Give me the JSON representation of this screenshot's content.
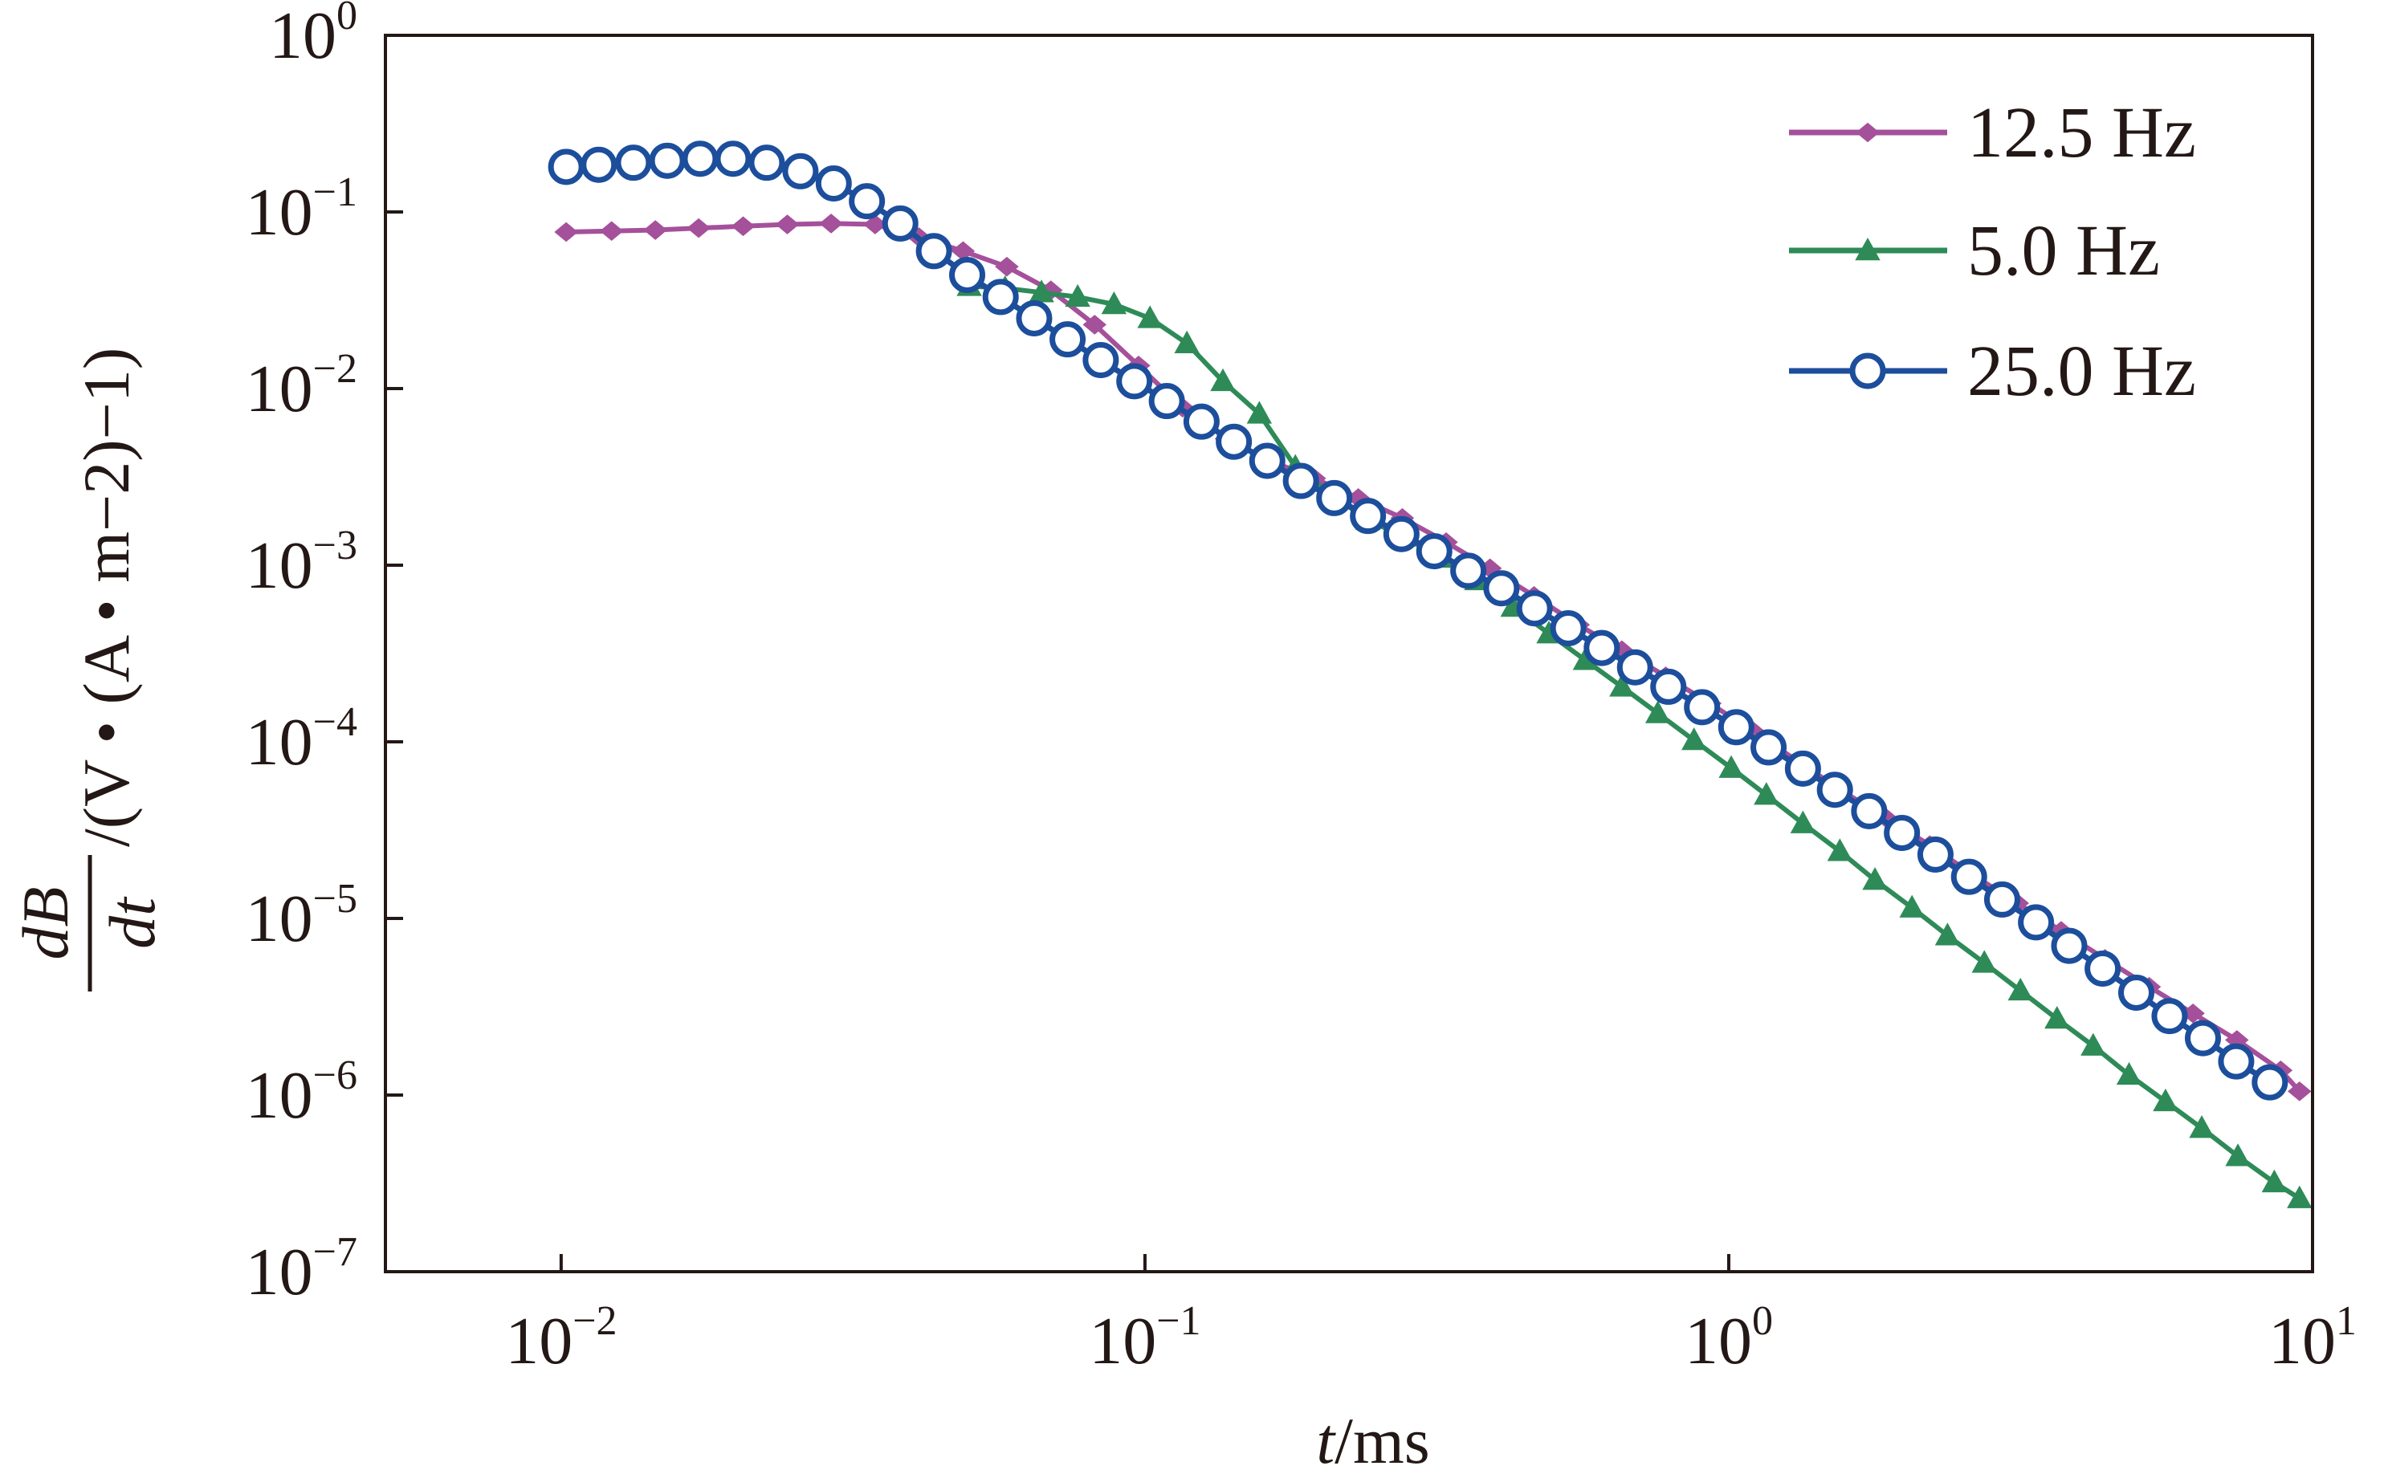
{
  "chart_data": {
    "type": "line",
    "xscale": "log",
    "yscale": "log",
    "xlim": [
      0.005,
      10
    ],
    "ylim": [
      1e-07,
      1
    ],
    "xlabel": {
      "italic": "t",
      "rest": "/ms"
    },
    "ylabel": {
      "numerator": "dB",
      "denominator": "dt",
      "unit": "/(V • (A • m−2)−1)"
    },
    "x_ticks": [
      {
        "value": 0.01,
        "base": "10",
        "exp": "−2"
      },
      {
        "value": 0.1,
        "base": "10",
        "exp": "−1"
      },
      {
        "value": 1,
        "base": "10",
        "exp": "0"
      },
      {
        "value": 10,
        "base": "10",
        "exp": "1"
      }
    ],
    "y_ticks": [
      {
        "value": 1,
        "base": "10",
        "exp": "0"
      },
      {
        "value": 0.1,
        "base": "10",
        "exp": "−1"
      },
      {
        "value": 0.01,
        "base": "10",
        "exp": "−2"
      },
      {
        "value": 0.001,
        "base": "10",
        "exp": "−3"
      },
      {
        "value": 0.0001,
        "base": "10",
        "exp": "−4"
      },
      {
        "value": 1e-05,
        "base": "10",
        "exp": "−5"
      },
      {
        "value": 1e-06,
        "base": "10",
        "exp": "−6"
      },
      {
        "value": 1e-07,
        "base": "10",
        "exp": "−7"
      }
    ],
    "legend_position": "top-right",
    "series": [
      {
        "name": "12.5 Hz",
        "color": "#a5509b",
        "marker": "diamond",
        "x": [
          0.0102,
          0.0122,
          0.0145,
          0.0172,
          0.0205,
          0.0244,
          0.029,
          0.0345,
          0.041,
          0.0488,
          0.058,
          0.069,
          0.082,
          0.0975,
          0.116,
          0.138,
          0.164,
          0.195,
          0.232,
          0.276,
          0.328,
          0.39,
          0.464,
          0.552,
          0.656,
          0.78,
          0.928,
          1.1,
          1.31,
          1.56,
          1.86,
          2.21,
          2.63,
          3.12,
          3.71,
          4.41,
          5.25,
          6.24,
          7.42,
          8.82,
          9.5
        ],
        "y": [
          0.077,
          0.078,
          0.079,
          0.081,
          0.083,
          0.085,
          0.086,
          0.085,
          0.072,
          0.06,
          0.049,
          0.036,
          0.023,
          0.0135,
          0.0078,
          0.0052,
          0.0039,
          0.0031,
          0.0024,
          0.00185,
          0.00135,
          0.00096,
          0.00067,
          0.00046,
          0.00033,
          0.000235,
          0.000165,
          0.000115,
          7.8e-05,
          5.3e-05,
          3.7e-05,
          2.6e-05,
          1.75e-05,
          1.22e-05,
          8.5e-06,
          5.9e-06,
          4.1e-06,
          2.9e-06,
          2.05e-06,
          1.38e-06,
          1.05e-06
        ]
      },
      {
        "name": "5.0 Hz",
        "color": "#2e8b57",
        "marker": "triangle",
        "x": [
          0.05,
          0.0576,
          0.0665,
          0.0767,
          0.0885,
          0.102,
          0.118,
          0.136,
          0.157,
          0.181,
          0.209,
          0.241,
          0.278,
          0.32,
          0.37,
          0.427,
          0.492,
          0.568,
          0.656,
          0.756,
          0.872,
          1.01,
          1.16,
          1.34,
          1.55,
          1.78,
          2.06,
          2.37,
          2.74,
          3.16,
          3.65,
          4.21,
          4.85,
          5.6,
          6.46,
          7.45,
          8.6,
          9.5
        ],
        "y": [
          0.038,
          0.037,
          0.035,
          0.033,
          0.03,
          0.025,
          0.018,
          0.011,
          0.0072,
          0.0036,
          0.0025,
          0.0018,
          0.00145,
          0.0011,
          0.00082,
          0.00058,
          0.00041,
          0.00029,
          0.000205,
          0.000145,
          0.000102,
          7.1e-05,
          5e-05,
          3.45e-05,
          2.4e-05,
          1.65e-05,
          1.15e-05,
          8e-06,
          5.6e-06,
          3.9e-06,
          2.7e-06,
          1.9e-06,
          1.3e-06,
          9.2e-07,
          6.5e-07,
          4.5e-07,
          3.2e-07,
          2.6e-07
        ]
      },
      {
        "name": "25.0 Hz",
        "color": "#1c4e9c",
        "marker": "circle",
        "x": [
          0.0102,
          0.0116,
          0.0133,
          0.0152,
          0.0173,
          0.0197,
          0.0225,
          0.0257,
          0.0293,
          0.0334,
          0.0381,
          0.0435,
          0.0496,
          0.0566,
          0.0646,
          0.0737,
          0.084,
          0.0959,
          0.109,
          0.125,
          0.142,
          0.162,
          0.185,
          0.211,
          0.241,
          0.275,
          0.313,
          0.358,
          0.408,
          0.465,
          0.531,
          0.606,
          0.691,
          0.788,
          0.9,
          1.03,
          1.17,
          1.34,
          1.52,
          1.74,
          1.98,
          2.26,
          2.58,
          2.94,
          3.36,
          3.83,
          4.37,
          4.99,
          5.69,
          6.49,
          7.4,
          8.45
        ],
        "y": [
          0.18,
          0.185,
          0.19,
          0.195,
          0.2,
          0.2,
          0.19,
          0.17,
          0.145,
          0.115,
          0.086,
          0.06,
          0.044,
          0.033,
          0.025,
          0.019,
          0.0145,
          0.011,
          0.0085,
          0.0065,
          0.005,
          0.0039,
          0.003,
          0.0024,
          0.0019,
          0.0015,
          0.0012,
          0.00093,
          0.00074,
          0.00057,
          0.00044,
          0.00034,
          0.000264,
          0.000205,
          0.000157,
          0.000121,
          9.3e-05,
          7.05e-05,
          5.35e-05,
          4.05e-05,
          3.05e-05,
          2.3e-05,
          1.72e-05,
          1.28e-05,
          9.5e-06,
          7e-06,
          5.2e-06,
          3.8e-06,
          2.8e-06,
          2.1e-06,
          1.55e-06,
          1.18e-06
        ]
      }
    ]
  }
}
